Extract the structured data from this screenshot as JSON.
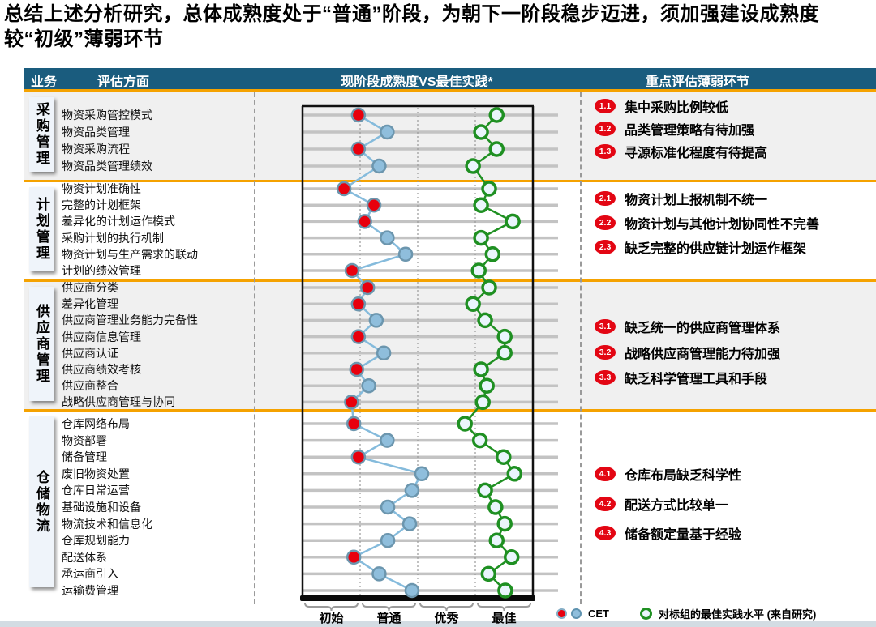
{
  "title": "总结上述分析研究，总体成熟度处于“普通”阶段，为朝下一阶段稳步迈进，须加强建设成熟度较“初级”薄弱环节",
  "header": {
    "business": "业务",
    "aspect": "评估方面",
    "chart": "现阶段成熟度VS最佳实践*",
    "notes": "重点评估薄弱环节"
  },
  "legend": {
    "cet_label": "CET",
    "best_label": "对标组的最佳实践水平 (来自研究)"
  },
  "colors": {
    "header_bg": "#1A5C7E",
    "accent_orange": "#F5A200",
    "badge_red": "#E30613",
    "cet_red": "#E8000D",
    "cet_blue": "#8FBEDC",
    "marker_ring": "#6C96AE",
    "blue_line": "#85BBDC",
    "best_green": "#1F9022",
    "best_fill": "#EAF5FC",
    "gridline": "#C3C3C3",
    "section_gray": "#F0F0F0",
    "section_white": "#FFFFFF"
  },
  "chart_data": {
    "type": "scatter",
    "title": "现阶段成熟度VS最佳实践*",
    "x_axis": {
      "labels": [
        "初始",
        "普通",
        "优秀",
        "最佳"
      ],
      "range": [
        0,
        4
      ],
      "gridlines": "dotted-quarters"
    },
    "series_legend": [
      {
        "name": "CET",
        "markers": [
          "red-dot",
          "blue-dot"
        ]
      },
      {
        "name": "对标组的最佳实践水平 (来自研究)",
        "markers": [
          "green-ring"
        ]
      }
    ],
    "sections": [
      {
        "category": "采购管理",
        "rows": [
          {
            "label": "物资采购管控模式",
            "cet": 0.97,
            "cet_marker": "red",
            "best": 3.37
          },
          {
            "label": "物资品类管理",
            "cet": 1.47,
            "cet_marker": "blue",
            "best": 3.1
          },
          {
            "label": "物资采购流程",
            "cet": 0.97,
            "cet_marker": "red",
            "best": 3.37
          },
          {
            "label": "物资品类管理绩效",
            "cet": 1.33,
            "cet_marker": "blue",
            "best": 2.96
          }
        ],
        "notes": [
          {
            "id": "1.1",
            "text": "集中采购比例较低"
          },
          {
            "id": "1.2",
            "text": "品类管理策略有待加强"
          },
          {
            "id": "1.3",
            "text": "寻源标准化程度有待提高"
          }
        ]
      },
      {
        "category": "计划管理",
        "rows": [
          {
            "label": "物资计划准确性",
            "cet": 0.72,
            "cet_marker": "red",
            "best": 3.24
          },
          {
            "label": "完整的计划框架",
            "cet": 1.24,
            "cet_marker": "red",
            "best": 3.1
          },
          {
            "label": "差异化的计划运作模式",
            "cet": 1.08,
            "cet_marker": "red",
            "best": 3.65
          },
          {
            "label": "采购计划的执行机制",
            "cet": 1.47,
            "cet_marker": "blue",
            "best": 3.1
          },
          {
            "label": "物资计划与生产需求的联动",
            "cet": 1.79,
            "cet_marker": "blue",
            "best": 3.3
          },
          {
            "label": "计划的绩效管理",
            "cet": 0.86,
            "cet_marker": "red",
            "best": 3.06
          }
        ],
        "notes": [
          {
            "id": "2.1",
            "text": "物资计划上报机制不统一"
          },
          {
            "id": "2.2",
            "text": "物资计划与其他计划协同性不完善"
          },
          {
            "id": "2.3",
            "text": "缺乏完整的供应链计划运作框架"
          }
        ]
      },
      {
        "category": "供应商管理",
        "rows": [
          {
            "label": "供应商分类",
            "cet": 1.13,
            "cet_marker": "red",
            "best": 3.24
          },
          {
            "label": "差异化管理",
            "cet": 0.97,
            "cet_marker": "red",
            "best": 2.96
          },
          {
            "label": "供应商管理业务能力完备性",
            "cet": 1.28,
            "cet_marker": "blue",
            "best": 3.17
          },
          {
            "label": "供应商信息管理",
            "cet": 0.97,
            "cet_marker": "red",
            "best": 3.51
          },
          {
            "label": "供应商认证",
            "cet": 1.41,
            "cet_marker": "blue",
            "best": 3.51
          },
          {
            "label": "供应商绩效考核",
            "cet": 0.94,
            "cet_marker": "red",
            "best": 3.1
          },
          {
            "label": "供应商整合",
            "cet": 1.15,
            "cet_marker": "blue",
            "best": 3.2
          },
          {
            "label": "战略供应商管理与协同",
            "cet": 0.85,
            "cet_marker": "red",
            "best": 3.13
          }
        ],
        "notes": [
          {
            "id": "3.1",
            "text": "缺乏统一的供应商管理体系"
          },
          {
            "id": "3.2",
            "text": "战略供应商管理能力待加强"
          },
          {
            "id": "3.3",
            "text": "缺乏科学管理工具和手段"
          }
        ]
      },
      {
        "category": "仓储物流",
        "rows": [
          {
            "label": "仓库网络布局",
            "cet": 0.89,
            "cet_marker": "red",
            "best": 2.82
          },
          {
            "label": "物资部署",
            "cet": 1.47,
            "cet_marker": "blue",
            "best": 3.08
          },
          {
            "label": "储备管理",
            "cet": 0.97,
            "cet_marker": "red",
            "best": 3.49
          },
          {
            "label": "废旧物资处置",
            "cet": 2.07,
            "cet_marker": "blue",
            "best": 3.68
          },
          {
            "label": "仓库日常运营",
            "cet": 1.9,
            "cet_marker": "blue",
            "best": 3.17
          },
          {
            "label": "基础设施和设备",
            "cet": 1.48,
            "cet_marker": "blue",
            "best": 3.35
          },
          {
            "label": "物流技术和信息化",
            "cet": 1.86,
            "cet_marker": "blue",
            "best": 3.51
          },
          {
            "label": "仓库规划能力",
            "cet": 1.48,
            "cet_marker": "blue",
            "best": 3.37
          },
          {
            "label": "配送体系",
            "cet": 0.89,
            "cet_marker": "red",
            "best": 3.63
          },
          {
            "label": "承运商引入",
            "cet": 1.33,
            "cet_marker": "blue",
            "best": 3.23
          },
          {
            "label": "运输费管理",
            "cet": 1.9,
            "cet_marker": "blue",
            "best": 3.52
          }
        ],
        "notes": [
          {
            "id": "4.1",
            "text": "仓库布局缺乏科学性"
          },
          {
            "id": "4.2",
            "text": "配送方式比较单一"
          },
          {
            "id": "4.3",
            "text": "储备额定量基于经验"
          }
        ]
      }
    ]
  }
}
